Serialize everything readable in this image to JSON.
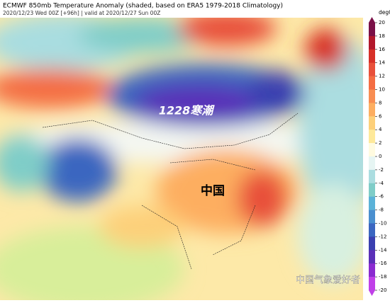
{
  "header": {
    "title": "ECMWF 850mb Temperature Anomaly (shaded, based on ERA5 1979-2018 Climatology)",
    "subtitle": "2020/12/23 Wed 00Z [+96h] | valid at 2020/12/27 Sun 00Z"
  },
  "annotations": [
    "1228寒潮",
    "中国"
  ],
  "watermark": "中国气象爱好者",
  "colorbar": {
    "label": "degC",
    "range": [
      -20,
      20
    ],
    "ticks": [
      20,
      18,
      16,
      14,
      12,
      10,
      8,
      6,
      4,
      2,
      0,
      -2,
      -4,
      -6,
      -8,
      -10,
      -12,
      -14,
      -16,
      -18,
      -20
    ],
    "colors": [
      "#7a1047",
      "#b2182b",
      "#d73027",
      "#e8503a",
      "#f46d43",
      "#f88d52",
      "#fdae61",
      "#fdd07a",
      "#fee99a",
      "#fffbe0",
      "#e6f5f3",
      "#abdde0",
      "#7fcdc8",
      "#5bb2d8",
      "#4a8fcf",
      "#3b66c0",
      "#3a3fb0",
      "#5a2fb8",
      "#8a2bd0",
      "#c040e8"
    ]
  }
}
